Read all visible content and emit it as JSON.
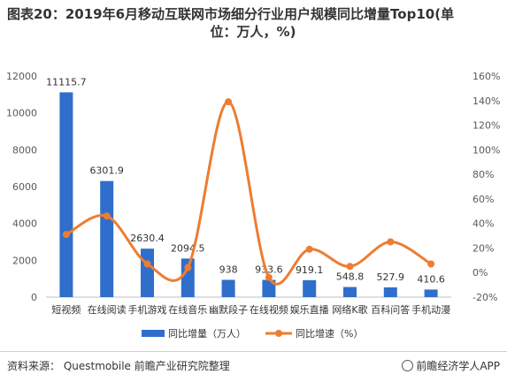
{
  "title": {
    "line1": "图表20：2019年6月移动互联网市场细分行业用户规模同比增量Top10(单",
    "line2": "位：万人，%)"
  },
  "source": "资料来源： Questmobile 前瞻产业研究院整理",
  "brand": "前瞻经济学人APP",
  "colors": {
    "bar": "#2f6fcb",
    "line": "#ed7d31"
  },
  "chart_data": {
    "type": "bar",
    "categories": [
      "短视频",
      "在线阅读",
      "手机游戏",
      "在线音乐",
      "幽默段子",
      "在线视频",
      "娱乐直播",
      "网络K歌",
      "百科问答",
      "手机动漫"
    ],
    "series": [
      {
        "name": "同比增量（万人）",
        "type": "bar",
        "axis": "left",
        "values": [
          11115.7,
          6301.9,
          2630.4,
          2094.5,
          938,
          933.6,
          919.1,
          548.8,
          527.9,
          410.6
        ]
      },
      {
        "name": "同比增速（%）",
        "type": "line",
        "smooth": true,
        "axis": "right",
        "values": [
          31,
          46,
          7,
          4,
          139,
          -4,
          19,
          5,
          25,
          7
        ]
      }
    ],
    "y_left": {
      "ylim": [
        0,
        12000
      ],
      "ticks": [
        "0",
        "2000",
        "4000",
        "6000",
        "8000",
        "10000",
        "12000"
      ]
    },
    "y_right": {
      "ylim": [
        -20,
        160
      ],
      "ticks": [
        "-20%",
        "0%",
        "20%",
        "40%",
        "60%",
        "80%",
        "100%",
        "120%",
        "140%",
        "160%"
      ]
    },
    "data_labels": [
      "11115.7",
      "6301.9",
      "2630.4",
      "2094.5",
      "938",
      "933.6",
      "919.1",
      "548.8",
      "527.9",
      "410.6"
    ],
    "legend_position": "bottom",
    "grid": false
  }
}
